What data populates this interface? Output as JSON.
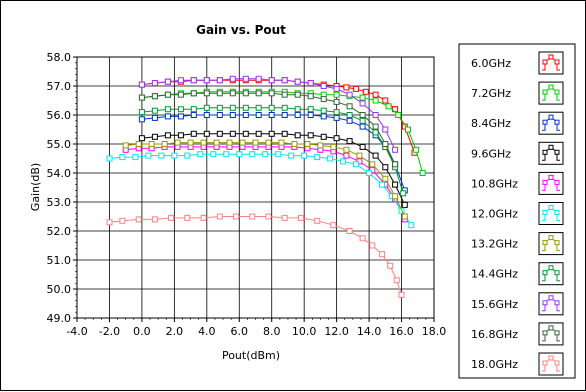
{
  "chart_data": {
    "type": "line",
    "title": "Gain vs. Pout",
    "xlabel": "Pout(dBm)",
    "ylabel": "Gain(dB)",
    "xlim": [
      -4.0,
      18.0
    ],
    "ylim": [
      49.0,
      58.0
    ],
    "xticks": [
      "-4.0",
      "-2.0",
      "0.0",
      "2.0",
      "4.0",
      "6.0",
      "8.0",
      "10.0",
      "12.0",
      "14.0",
      "16.0",
      "18.0"
    ],
    "yticks": [
      "49.0",
      "50.0",
      "51.0",
      "52.0",
      "53.0",
      "54.0",
      "55.0",
      "56.0",
      "57.0",
      "58.0"
    ],
    "grid": true,
    "legend_position": "right",
    "series": [
      {
        "name": "6.0GHz",
        "color": "#ff0000",
        "marker": "square",
        "x": [
          0.0,
          0.8,
          1.6,
          2.4,
          3.2,
          4.0,
          4.8,
          5.6,
          6.4,
          7.2,
          8.0,
          8.8,
          9.6,
          10.4,
          11.2,
          12.0,
          12.6,
          13.2,
          13.8,
          14.4,
          15.0,
          15.6,
          16.2,
          16.8
        ],
        "y": [
          57.05,
          57.1,
          57.15,
          57.15,
          57.2,
          57.2,
          57.2,
          57.2,
          57.2,
          57.2,
          57.2,
          57.2,
          57.15,
          57.1,
          57.05,
          57.0,
          56.95,
          56.9,
          56.8,
          56.7,
          56.5,
          56.2,
          55.6,
          54.7
        ]
      },
      {
        "name": "7.2GHz",
        "color": "#00cc00",
        "marker": "square",
        "x": [
          0.0,
          0.8,
          1.6,
          2.4,
          3.2,
          4.0,
          4.8,
          5.6,
          6.4,
          7.2,
          8.0,
          8.8,
          9.6,
          10.4,
          11.2,
          12.0,
          12.8,
          13.6,
          14.4,
          15.2,
          15.8,
          16.4,
          16.9,
          17.3
        ],
        "y": [
          56.6,
          56.65,
          56.7,
          56.75,
          56.75,
          56.8,
          56.8,
          56.8,
          56.8,
          56.8,
          56.8,
          56.8,
          56.75,
          56.75,
          56.7,
          56.7,
          56.65,
          56.6,
          56.5,
          56.3,
          56.0,
          55.5,
          54.8,
          54.0
        ]
      },
      {
        "name": "8.4GHz",
        "color": "#0033cc",
        "marker": "square",
        "x": [
          0.0,
          0.8,
          1.6,
          2.4,
          3.2,
          4.0,
          4.8,
          5.6,
          6.4,
          7.2,
          8.0,
          8.8,
          9.6,
          10.4,
          11.2,
          12.0,
          12.8,
          13.6,
          14.4,
          15.0,
          15.6,
          16.2
        ],
        "y": [
          55.85,
          55.9,
          55.95,
          55.95,
          56.0,
          56.0,
          56.0,
          56.0,
          56.0,
          56.0,
          56.0,
          56.0,
          56.0,
          56.0,
          55.95,
          55.9,
          55.8,
          55.6,
          55.3,
          54.9,
          54.3,
          53.4
        ]
      },
      {
        "name": "9.6GHz",
        "color": "#000000",
        "marker": "square",
        "x": [
          0.0,
          0.8,
          1.6,
          2.4,
          3.2,
          4.0,
          4.8,
          5.6,
          6.4,
          7.2,
          8.0,
          8.8,
          9.6,
          10.4,
          11.2,
          12.0,
          12.8,
          13.6,
          14.4,
          15.0,
          15.6,
          16.2
        ],
        "y": [
          55.2,
          55.25,
          55.3,
          55.3,
          55.35,
          55.35,
          55.35,
          55.35,
          55.35,
          55.35,
          55.35,
          55.35,
          55.3,
          55.3,
          55.25,
          55.2,
          55.1,
          54.9,
          54.6,
          54.2,
          53.6,
          52.9
        ]
      },
      {
        "name": "10.8GHz",
        "color": "#ff00ff",
        "marker": "square",
        "x": [
          -1.0,
          -0.2,
          0.6,
          1.4,
          2.2,
          3.0,
          3.8,
          4.6,
          5.4,
          6.2,
          7.0,
          7.8,
          8.6,
          9.4,
          10.2,
          11.0,
          11.8,
          12.6,
          13.4,
          14.2,
          15.0,
          15.6,
          16.2
        ],
        "y": [
          54.8,
          54.85,
          54.85,
          54.9,
          54.9,
          54.9,
          54.9,
          54.9,
          54.9,
          54.9,
          54.9,
          54.9,
          54.9,
          54.9,
          54.85,
          54.8,
          54.75,
          54.6,
          54.4,
          54.1,
          53.6,
          53.1,
          52.4
        ]
      },
      {
        "name": "12.0GHz",
        "color": "#00e5ee",
        "marker": "square",
        "x": [
          -2.0,
          -1.2,
          -0.4,
          0.4,
          1.2,
          2.0,
          2.8,
          3.6,
          4.4,
          5.2,
          6.0,
          6.8,
          7.6,
          8.4,
          9.2,
          10.0,
          10.8,
          11.6,
          12.4,
          13.2,
          14.0,
          14.8,
          15.4,
          16.0,
          16.6
        ],
        "y": [
          54.5,
          54.55,
          54.55,
          54.6,
          54.6,
          54.6,
          54.6,
          54.65,
          54.65,
          54.65,
          54.65,
          54.65,
          54.65,
          54.65,
          54.6,
          54.6,
          54.55,
          54.5,
          54.4,
          54.3,
          54.0,
          53.6,
          53.2,
          52.7,
          52.2
        ]
      },
      {
        "name": "13.2GHz",
        "color": "#999900",
        "marker": "square",
        "x": [
          -1.0,
          -0.2,
          0.6,
          1.4,
          2.2,
          3.0,
          3.8,
          4.6,
          5.4,
          6.2,
          7.0,
          7.8,
          8.6,
          9.4,
          10.2,
          11.0,
          11.8,
          12.6,
          13.4,
          14.2,
          15.0,
          15.6,
          16.2
        ],
        "y": [
          54.95,
          55.0,
          55.0,
          55.0,
          55.05,
          55.05,
          55.05,
          55.05,
          55.05,
          55.05,
          55.05,
          55.05,
          55.05,
          55.0,
          55.0,
          54.95,
          54.9,
          54.8,
          54.6,
          54.3,
          53.8,
          53.2,
          52.5
        ]
      },
      {
        "name": "14.4GHz",
        "color": "#009933",
        "marker": "square",
        "x": [
          0.0,
          0.8,
          1.6,
          2.4,
          3.2,
          4.0,
          4.8,
          5.6,
          6.4,
          7.2,
          8.0,
          8.8,
          9.6,
          10.4,
          11.2,
          12.0,
          12.8,
          13.6,
          14.4,
          15.0,
          15.6,
          16.1
        ],
        "y": [
          56.1,
          56.15,
          56.2,
          56.2,
          56.2,
          56.25,
          56.25,
          56.25,
          56.25,
          56.25,
          56.25,
          56.25,
          56.2,
          56.2,
          56.15,
          56.1,
          56.0,
          55.8,
          55.4,
          54.9,
          54.2,
          53.3
        ]
      },
      {
        "name": "15.6GHz",
        "color": "#9933ff",
        "marker": "square",
        "x": [
          0.0,
          0.8,
          1.6,
          2.4,
          3.2,
          4.0,
          4.8,
          5.6,
          6.4,
          7.2,
          8.0,
          8.8,
          9.6,
          10.4,
          11.2,
          12.0,
          12.8,
          13.6,
          14.4,
          15.0,
          15.6
        ],
        "y": [
          57.05,
          57.1,
          57.15,
          57.2,
          57.2,
          57.2,
          57.2,
          57.25,
          57.25,
          57.25,
          57.2,
          57.2,
          57.15,
          57.1,
          57.0,
          56.9,
          56.7,
          56.4,
          56.0,
          55.5,
          54.8
        ]
      },
      {
        "name": "16.8GHz",
        "color": "#336633",
        "marker": "square",
        "x": [
          0.0,
          0.8,
          1.6,
          2.4,
          3.2,
          4.0,
          4.8,
          5.6,
          6.4,
          7.2,
          8.0,
          8.8,
          9.6,
          10.4,
          11.2,
          12.0,
          12.8,
          13.6,
          14.4,
          15.0,
          15.6
        ],
        "y": [
          56.6,
          56.65,
          56.7,
          56.7,
          56.75,
          56.75,
          56.75,
          56.75,
          56.75,
          56.75,
          56.75,
          56.7,
          56.7,
          56.65,
          56.55,
          56.45,
          56.3,
          56.0,
          55.6,
          55.0,
          54.3
        ]
      },
      {
        "name": "18.0GHz",
        "color": "#ff8080",
        "marker": "square",
        "x": [
          -2.0,
          -1.2,
          -0.2,
          0.8,
          1.8,
          2.8,
          3.8,
          4.8,
          5.8,
          6.8,
          7.8,
          8.8,
          9.8,
          10.8,
          11.8,
          12.8,
          13.6,
          14.2,
          14.8,
          15.3,
          15.7,
          16.0
        ],
        "y": [
          52.3,
          52.35,
          52.4,
          52.4,
          52.45,
          52.45,
          52.45,
          52.5,
          52.5,
          52.5,
          52.5,
          52.45,
          52.45,
          52.35,
          52.2,
          52.0,
          51.75,
          51.5,
          51.2,
          50.8,
          50.3,
          49.8
        ]
      }
    ]
  }
}
